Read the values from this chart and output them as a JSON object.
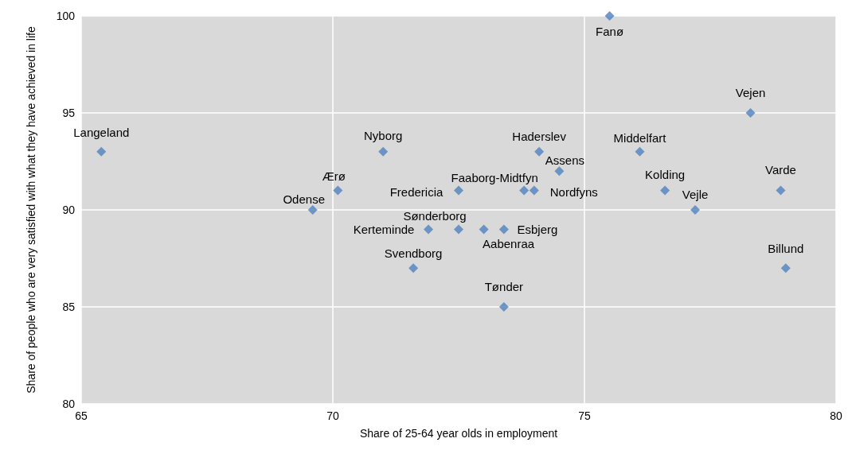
{
  "chart_data": {
    "type": "scatter",
    "xlabel": "Share of 25-64 year olds in employment",
    "ylabel": "Share of people who are very satisfied with what they have achieved in life",
    "x": [
      65.4,
      69.6,
      70.1,
      71.0,
      71.6,
      71.9,
      72.5,
      72.5,
      73.0,
      73.4,
      73.4,
      73.8,
      74.0,
      74.1,
      74.5,
      75.5,
      76.1,
      76.6,
      77.2,
      78.3,
      78.9,
      79.0
    ],
    "values": [
      93,
      90,
      91,
      93,
      87,
      89,
      89,
      91,
      89,
      89,
      85,
      91,
      91,
      93,
      92,
      100,
      93,
      91,
      90,
      95,
      91,
      87
    ],
    "color": "#4f81bd",
    "marker": "diamond",
    "grid": true,
    "xlim": [
      65,
      80
    ],
    "xticks": [
      65,
      70,
      75,
      80
    ],
    "ylim": [
      80,
      100
    ],
    "yticks": [
      80,
      85,
      90,
      95,
      100
    ],
    "annotations": [
      {
        "text": "Langeland",
        "x": 65.4,
        "y": 93
      },
      {
        "text": "Odense",
        "x": 69.6,
        "y": 90
      },
      {
        "text": "Ærø",
        "x": 70.1,
        "y": 91
      },
      {
        "text": "Nyborg",
        "x": 71.0,
        "y": 93
      },
      {
        "text": "Svendborg",
        "x": 71.6,
        "y": 87
      },
      {
        "text": "Kerteminde",
        "x": 71.9,
        "y": 89
      },
      {
        "text": "Sønderborg",
        "x": 72.5,
        "y": 89
      },
      {
        "text": "Fredericia",
        "x": 72.5,
        "y": 91
      },
      {
        "text": "Aabenraa",
        "x": 73.0,
        "y": 89
      },
      {
        "text": "Esbjerg",
        "x": 73.4,
        "y": 89
      },
      {
        "text": "Tønder",
        "x": 73.4,
        "y": 85
      },
      {
        "text": "Faaborg-Midtfyn",
        "x": 73.8,
        "y": 91
      },
      {
        "text": "Nordfyns",
        "x": 74.0,
        "y": 91
      },
      {
        "text": "Haderslev",
        "x": 74.1,
        "y": 93
      },
      {
        "text": "Assens",
        "x": 74.5,
        "y": 92
      },
      {
        "text": "Fanø",
        "x": 75.5,
        "y": 100
      },
      {
        "text": "Middelfart",
        "x": 76.1,
        "y": 93
      },
      {
        "text": "Kolding",
        "x": 76.6,
        "y": 91
      },
      {
        "text": "Vejle",
        "x": 77.2,
        "y": 90
      },
      {
        "text": "Vejen",
        "x": 78.3,
        "y": 95
      },
      {
        "text": "Varde",
        "x": 78.9,
        "y": 91
      },
      {
        "text": "Billund",
        "x": 79.0,
        "y": 87
      }
    ]
  }
}
